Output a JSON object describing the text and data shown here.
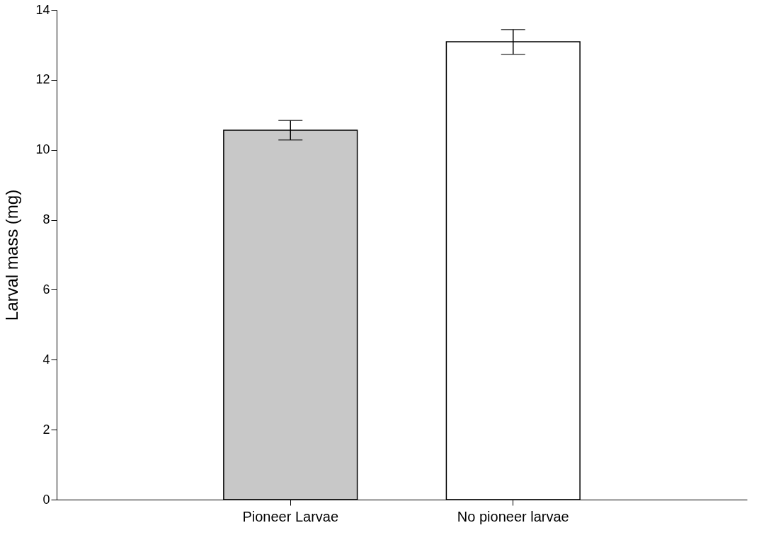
{
  "chart_data": {
    "type": "bar",
    "ylabel": "Larval mass (mg)",
    "categories": [
      "Pioneer Larvae",
      "No pioneer larvae"
    ],
    "values": [
      10.56,
      13.09
    ],
    "colors": [
      "#c8c8c8",
      "#ffffff"
    ],
    "errors": [
      [
        10.28,
        10.84
      ],
      [
        12.73,
        13.44
      ]
    ],
    "ylim": [
      0,
      14
    ],
    "yticks": [
      0,
      2,
      4,
      6,
      8,
      10,
      12,
      14
    ],
    "grid": false
  }
}
